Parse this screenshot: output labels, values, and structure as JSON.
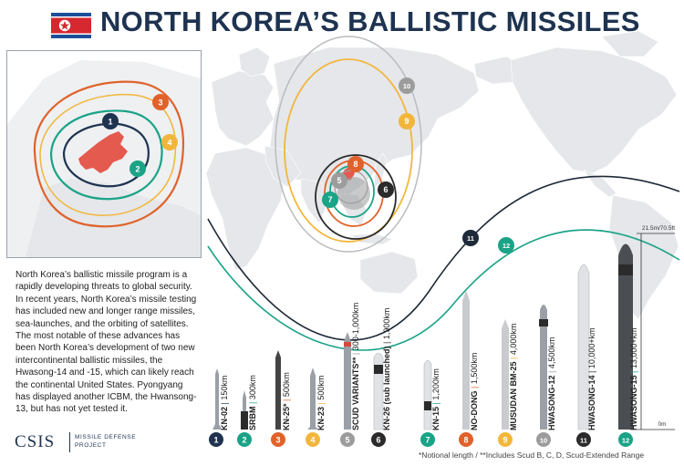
{
  "title": "NORTH KOREA’S BALLISTIC MISSILES",
  "intro_text": "North Korea’s ballistic missile program is a rapidly developing threats to global security. In recent years, North Korea’s missile testing has included new and longer range missiles, sea-launches, and the orbiting of satellites. The most notable of these advances has been North Korea’s development of two new intercontinental ballistic missiles, the Hwasong-14 and -15, which can likely reach the continental United States. Pyongyang has displayed another ICBM, the Hwansong-13, but has not yet tested it.",
  "logo": {
    "name": "CSIS",
    "project_line1": "MISSILE DEFENSE",
    "project_line2": "PROJECT"
  },
  "footnote": "*Notional length / **Includes Scud B, C, D, Scud-Extended Range",
  "scale": {
    "top_label": "21.5m/70.5ft",
    "bottom_label": "0m"
  },
  "colors": {
    "navy": "#1e3350",
    "green": "#1aa387",
    "orange": "#e0622a",
    "yellow": "#f2b63c",
    "gray": "#9c9c9c",
    "dark": "#2b2b2b",
    "land": "#e5e7ea",
    "nk_red": "#e45a4e"
  },
  "missiles": [
    {
      "num": "1",
      "name": "KN-02",
      "range": "150km",
      "color": "#1e3350"
    },
    {
      "num": "2",
      "name": "SRBM",
      "range": "300km",
      "color": "#1aa387"
    },
    {
      "num": "3",
      "name": "KN-25*",
      "range": "500km",
      "color": "#e0622a"
    },
    {
      "num": "4",
      "name": "KN-23",
      "range": "500km",
      "color": "#f2b63c"
    },
    {
      "num": "5",
      "name": "SCUD VARIANTS**",
      "range": "300-1,000km",
      "color": "#9c9c9c"
    },
    {
      "num": "6",
      "name": "KN-26 (sub launched)",
      "range": "1,900km",
      "color": "#2b2b2b"
    },
    {
      "num": "7",
      "name": "KN-15",
      "range": "1,200km",
      "color": "#1aa387"
    },
    {
      "num": "8",
      "name": "NO-DONG",
      "range": "1,500km",
      "color": "#e0622a"
    },
    {
      "num": "9",
      "name": "MUSUDAN BM-25",
      "range": "4,000km",
      "color": "#f2b63c"
    },
    {
      "num": "10",
      "name": "HWASONG-12",
      "range": "4,500km",
      "color": "#9c9c9c"
    },
    {
      "num": "11",
      "name": "HWASONG-14",
      "range": "10,000+km",
      "color": "#2b2b2b"
    },
    {
      "num": "12",
      "name": "HWASONG-15",
      "range": "13,000+km",
      "color": "#1aa387"
    }
  ]
}
